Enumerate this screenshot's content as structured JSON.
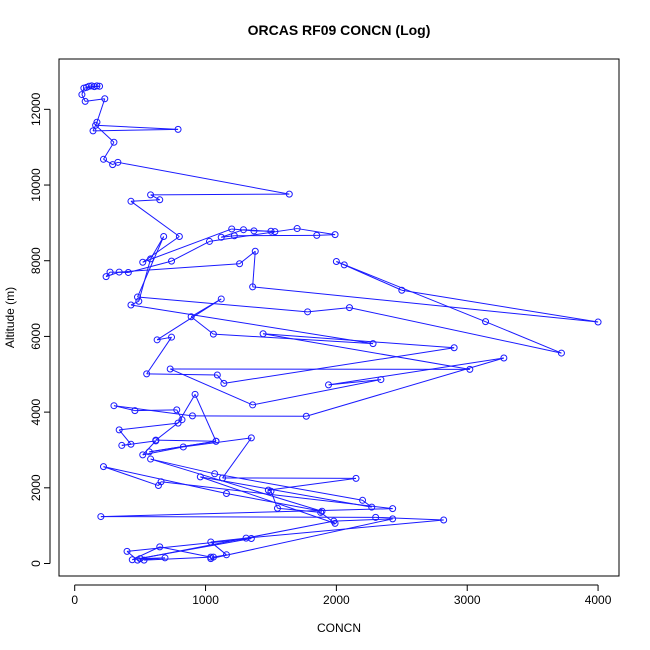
{
  "chart_data": {
    "type": "line",
    "title": "ORCAS RF09 CONCN (Log)",
    "xlabel": "CONCN",
    "ylabel": "Altitude (m)",
    "xlim": [
      -120,
      4160
    ],
    "ylim": [
      -330,
      13330
    ],
    "x_ticks": [
      0,
      1000,
      2000,
      3000,
      4000
    ],
    "y_ticks": [
      0,
      2000,
      4000,
      6000,
      8000,
      10000,
      12000
    ],
    "grid": false,
    "legend": "none",
    "series": [
      {
        "style": "line with open circle markers",
        "points": [
          [
            90,
            12580
          ],
          [
            110,
            12610
          ],
          [
            130,
            12620
          ],
          [
            150,
            12600
          ],
          [
            170,
            12620
          ],
          [
            190,
            12610
          ],
          [
            70,
            12560
          ],
          [
            55,
            12390
          ],
          [
            80,
            12210
          ],
          [
            230,
            12280
          ],
          [
            170,
            11660
          ],
          [
            140,
            11430
          ],
          [
            790,
            11470
          ],
          [
            160,
            11580
          ],
          [
            300,
            11130
          ],
          [
            220,
            10680
          ],
          [
            290,
            10540
          ],
          [
            330,
            10600
          ],
          [
            1640,
            9760
          ],
          [
            580,
            9740
          ],
          [
            650,
            9610
          ],
          [
            430,
            9570
          ],
          [
            800,
            8640
          ],
          [
            520,
            7960
          ],
          [
            1200,
            8840
          ],
          [
            1370,
            8790
          ],
          [
            1500,
            8780
          ],
          [
            1530,
            8770
          ],
          [
            1290,
            8820
          ],
          [
            1120,
            8620
          ],
          [
            1220,
            8660
          ],
          [
            1850,
            8670
          ],
          [
            1990,
            8690
          ],
          [
            1700,
            8850
          ],
          [
            1030,
            8510
          ],
          [
            740,
            7990
          ],
          [
            410,
            7690
          ],
          [
            270,
            7700
          ],
          [
            240,
            7580
          ],
          [
            340,
            7700
          ],
          [
            1260,
            7920
          ],
          [
            1380,
            8250
          ],
          [
            1360,
            7310
          ],
          [
            4000,
            6380
          ],
          [
            2500,
            7220
          ],
          [
            2060,
            7890
          ],
          [
            2000,
            7980
          ],
          [
            3140,
            6390
          ],
          [
            3720,
            5560
          ],
          [
            2100,
            6760
          ],
          [
            1780,
            6650
          ],
          [
            480,
            7040
          ],
          [
            680,
            8640
          ],
          [
            580,
            8050
          ],
          [
            490,
            6930
          ],
          [
            430,
            6830
          ],
          [
            2280,
            5810
          ],
          [
            1060,
            6060
          ],
          [
            890,
            6520
          ],
          [
            1120,
            6990
          ],
          [
            630,
            5910
          ],
          [
            740,
            5980
          ],
          [
            550,
            5010
          ],
          [
            1090,
            4980
          ],
          [
            1140,
            4760
          ],
          [
            2900,
            5700
          ],
          [
            1440,
            6070
          ],
          [
            3020,
            5130
          ],
          [
            730,
            5140
          ],
          [
            1360,
            4190
          ],
          [
            2340,
            4860
          ],
          [
            1940,
            4720
          ],
          [
            3280,
            5430
          ],
          [
            1770,
            3890
          ],
          [
            900,
            3900
          ],
          [
            300,
            4170
          ],
          [
            460,
            4040
          ],
          [
            780,
            4060
          ],
          [
            820,
            3800
          ],
          [
            620,
            3260
          ],
          [
            1080,
            3230
          ],
          [
            570,
            2950
          ],
          [
            1080,
            3230
          ],
          [
            920,
            4470
          ],
          [
            790,
            3710
          ],
          [
            340,
            3530
          ],
          [
            430,
            3150
          ],
          [
            360,
            3120
          ],
          [
            620,
            3240
          ],
          [
            520,
            2870
          ],
          [
            830,
            3080
          ],
          [
            1350,
            3320
          ],
          [
            1130,
            2260
          ],
          [
            2150,
            2250
          ],
          [
            1480,
            1940
          ],
          [
            1500,
            1910
          ],
          [
            1550,
            1460
          ],
          [
            1880,
            1350
          ],
          [
            1990,
            1060
          ],
          [
            960,
            2290
          ],
          [
            2270,
            1490
          ],
          [
            2200,
            1670
          ],
          [
            1070,
            2370
          ],
          [
            580,
            2760
          ],
          [
            1890,
            1380
          ],
          [
            1160,
            1850
          ],
          [
            220,
            2560
          ],
          [
            640,
            2060
          ],
          [
            660,
            2160
          ],
          [
            2430,
            1450
          ],
          [
            200,
            1240
          ],
          [
            2300,
            1220
          ],
          [
            2820,
            1150
          ],
          [
            1310,
            670
          ],
          [
            1040,
            570
          ],
          [
            1160,
            230
          ],
          [
            1060,
            170
          ],
          [
            1040,
            130
          ],
          [
            2430,
            1180
          ],
          [
            1980,
            1120
          ],
          [
            500,
            130
          ],
          [
            690,
            150
          ],
          [
            480,
            90
          ],
          [
            400,
            320
          ],
          [
            1350,
            660
          ],
          [
            440,
            100
          ],
          [
            650,
            440
          ],
          [
            1040,
            170
          ],
          [
            530,
            90
          ]
        ]
      }
    ]
  },
  "colors": {
    "series": "#1a1aff",
    "axis": "#000000",
    "background": "#ffffff"
  }
}
